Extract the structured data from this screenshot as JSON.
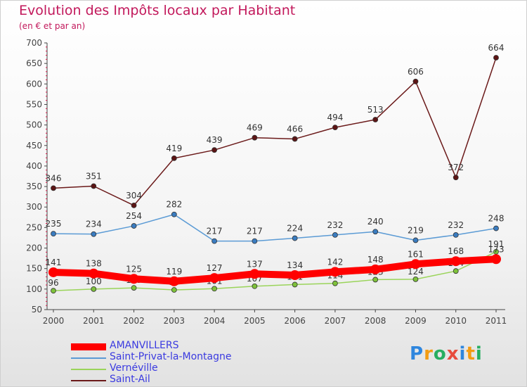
{
  "title": "Evolution des Impôts locaux par Habitant",
  "subtitle": "(en € et par an)",
  "logo": {
    "text": "Proxiti",
    "letters": [
      {
        "ch": "P",
        "color": "#2e86de"
      },
      {
        "ch": "r",
        "color": "#f39c12"
      },
      {
        "ch": "o",
        "color": "#27ae60"
      },
      {
        "ch": "x",
        "color": "#e74c3c"
      },
      {
        "ch": "i",
        "color": "#2e86de"
      },
      {
        "ch": "t",
        "color": "#f39c12"
      },
      {
        "ch": "i",
        "color": "#27ae60"
      }
    ]
  },
  "chart_data": {
    "type": "line",
    "x": [
      "2000",
      "2001",
      "2002",
      "2003",
      "2004",
      "2005",
      "2006",
      "2007",
      "2008",
      "2009",
      "2010",
      "2011"
    ],
    "ylim": [
      50,
      700
    ],
    "yticks": [
      50,
      100,
      150,
      200,
      250,
      300,
      350,
      400,
      450,
      500,
      550,
      600,
      650,
      700
    ],
    "grid": false,
    "legend_position": "bottom-left",
    "series": [
      {
        "name": "Saint-Ail",
        "color": "#6b1a1a",
        "point_color": "#5c1414",
        "values": [
          346,
          351,
          304,
          419,
          439,
          469,
          466,
          494,
          513,
          606,
          372,
          664
        ]
      },
      {
        "name": "Saint-Privat-la-Montagne",
        "color": "#5b9bd5",
        "point_color": "#3a7cc0",
        "values": [
          235,
          234,
          254,
          282,
          217,
          217,
          224,
          232,
          240,
          219,
          232,
          248
        ]
      },
      {
        "name": "Vernéville",
        "color": "#9ad45a",
        "point_color": "#7ec23a",
        "values": [
          96,
          100,
          103,
          98,
          101,
          107,
          111,
          114,
          123,
          124,
          144,
          191
        ]
      },
      {
        "name": "AMANVILLERS",
        "color": "#ff0000",
        "point_color": "#ff0000",
        "values": [
          141,
          138,
          125,
          119,
          127,
          137,
          134,
          142,
          148,
          161,
          168,
          173
        ]
      }
    ],
    "legend_order": [
      "AMANVILLERS",
      "Saint-Privat-la-Montagne",
      "Vernéville",
      "Saint-Ail"
    ]
  }
}
